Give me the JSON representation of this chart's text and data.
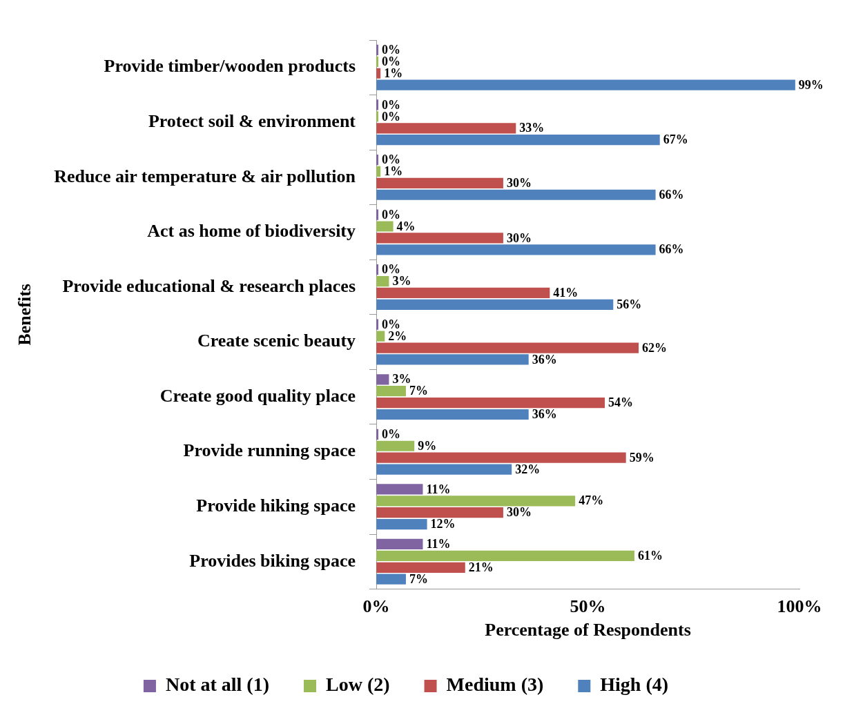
{
  "chart_data": {
    "type": "bar",
    "orientation": "horizontal",
    "xlabel": "Percentage of Respondents",
    "ylabel": "Benefits",
    "categories": [
      "Provide timber/wooden products",
      "Protect soil & environment",
      "Reduce air temperature & air pollution",
      "Act as home of biodiversity",
      "Provide educational & research places",
      "Create scenic beauty",
      "Create good quality place",
      "Provide running space",
      "Provide hiking space",
      "Provides biking space"
    ],
    "series": [
      {
        "name": "Not at all (1)",
        "color": "#8064a2",
        "values": [
          0,
          0,
          0,
          0,
          0,
          0,
          3,
          0,
          11,
          11
        ],
        "value_labels": [
          "0%",
          "0%",
          "0%",
          "0%",
          "0%",
          "0%",
          "3%",
          "0%",
          "11%",
          "11%"
        ]
      },
      {
        "name": "Low (2)",
        "color": "#9bbb59",
        "values": [
          0,
          0,
          1,
          4,
          3,
          2,
          7,
          9,
          47,
          61
        ],
        "value_labels": [
          "0%",
          "0%",
          "1%",
          "4%",
          "3%",
          "2%",
          "7%",
          "9%",
          "47%",
          "61%"
        ]
      },
      {
        "name": "Medium (3)",
        "color": "#c0504d",
        "values": [
          1,
          33,
          30,
          30,
          41,
          62,
          54,
          59,
          30,
          21
        ],
        "value_labels": [
          "1%",
          "33%",
          "30%",
          "30%",
          "41%",
          "62%",
          "54%",
          "59%",
          "30%",
          "21%"
        ]
      },
      {
        "name": "High (4)",
        "color": "#4f81bd",
        "values": [
          99,
          67,
          66,
          66,
          56,
          36,
          36,
          32,
          12,
          7
        ],
        "value_labels": [
          "99%",
          "67%",
          "66%",
          "66%",
          "56%",
          "36%",
          "36%",
          "32%",
          "12%",
          "7%"
        ]
      }
    ],
    "xlim": [
      0,
      100
    ],
    "xticks": [
      {
        "value": 0,
        "label": "0%"
      },
      {
        "value": 50,
        "label": "50%"
      },
      {
        "value": 100,
        "label": "100%"
      }
    ],
    "grid": false,
    "legend": "bottom"
  }
}
